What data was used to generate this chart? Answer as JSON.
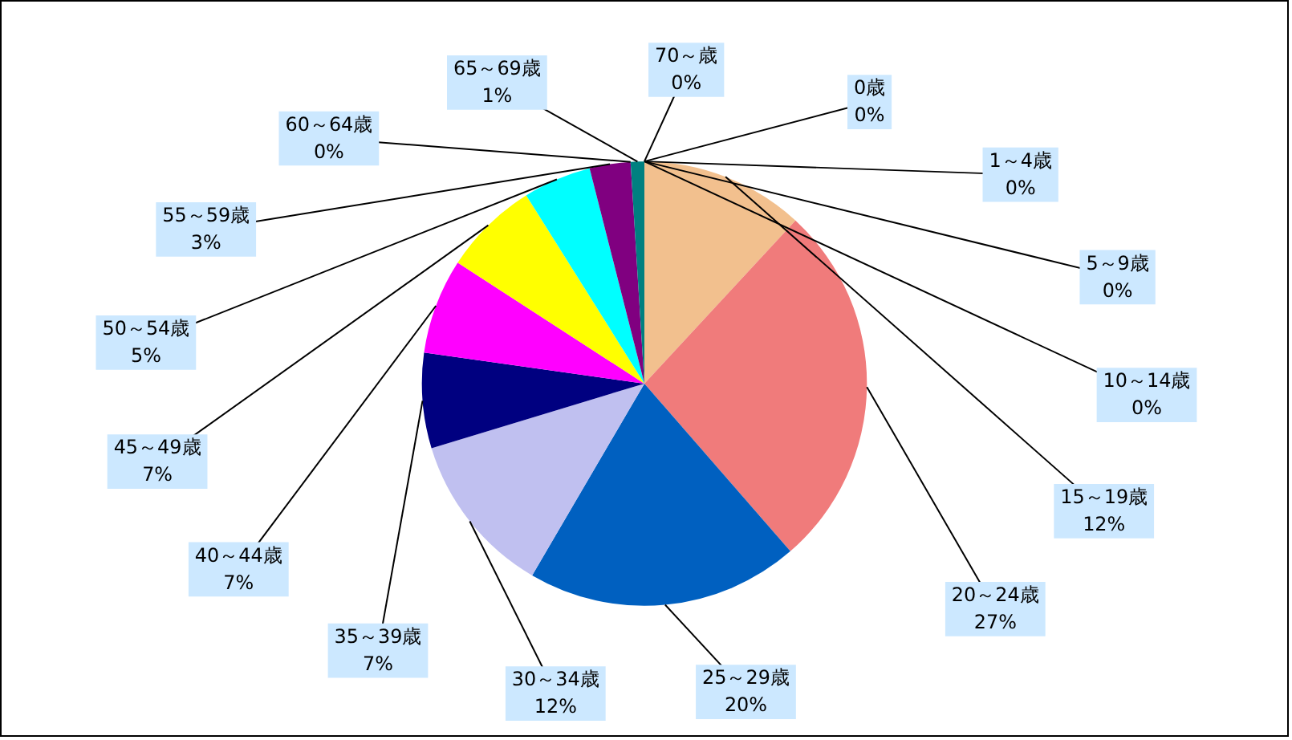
{
  "chart_data": {
    "type": "pie",
    "categories": [
      "0歳",
      "1～4歳",
      "5～9歳",
      "10～14歳",
      "15～19歳",
      "20～24歳",
      "25～29歳",
      "30～34歳",
      "35～39歳",
      "40～44歳",
      "45～49歳",
      "50～54歳",
      "55～59歳",
      "60～64歳",
      "65～69歳",
      "70～歳"
    ],
    "values": [
      0,
      0,
      0,
      0,
      12,
      27,
      20,
      12,
      7,
      7,
      7,
      5,
      3,
      0,
      1,
      0
    ],
    "value_labels": [
      "0%",
      "0%",
      "0%",
      "0%",
      "12%",
      "27%",
      "20%",
      "12%",
      "7%",
      "7%",
      "7%",
      "5%",
      "3%",
      "0%",
      "1%",
      "0%"
    ],
    "colors": [
      "#9999ff",
      "#993366",
      "#ffffcc",
      "#ccffff",
      "#f2c08e",
      "#f07b7b",
      "#0060c0",
      "#c0c0f0",
      "#000080",
      "#ff00ff",
      "#ffff00",
      "#00ffff",
      "#800080",
      "#800000",
      "#008080",
      "#0000ff"
    ],
    "legend": false
  }
}
